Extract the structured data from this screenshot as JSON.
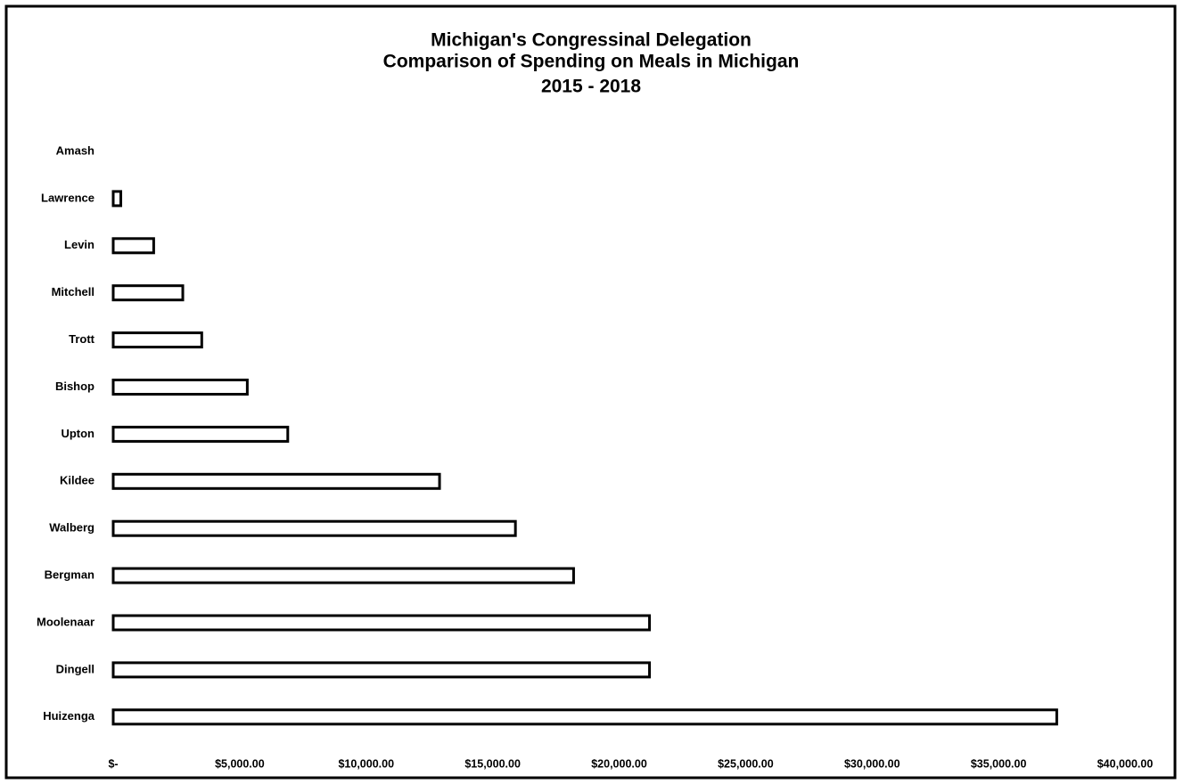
{
  "chart_data": {
    "type": "barh",
    "title": [
      "Michigan's Congressinal Delegation",
      "Comparison of Spending on Meals in Michigan",
      "2015 - 2018"
    ],
    "categories": [
      "Amash",
      "Lawrence",
      "Levin",
      "Mitchell",
      "Trott",
      "Bishop",
      "Upton",
      "Kildee",
      "Walberg",
      "Bergman",
      "Moolenaar",
      "Dingell",
      "Huizenga"
    ],
    "values": [
      0,
      300,
      1600,
      2750,
      3500,
      5300,
      6900,
      12900,
      15900,
      18200,
      21200,
      21200,
      37300
    ],
    "color": "#ffffff",
    "xlim": [
      0,
      40000
    ],
    "xticks": [
      {
        "value": 0,
        "label": "$-"
      },
      {
        "value": 5000,
        "label": "$5,000.00"
      },
      {
        "value": 10000,
        "label": "$10,000.00"
      },
      {
        "value": 15000,
        "label": "$15,000.00"
      },
      {
        "value": 20000,
        "label": "$20,000.00"
      },
      {
        "value": 25000,
        "label": "$25,000.00"
      },
      {
        "value": 30000,
        "label": "$30,000.00"
      },
      {
        "value": 35000,
        "label": "$35,000.00"
      },
      {
        "value": 40000,
        "label": "$40,000.00"
      }
    ],
    "grid": false
  }
}
